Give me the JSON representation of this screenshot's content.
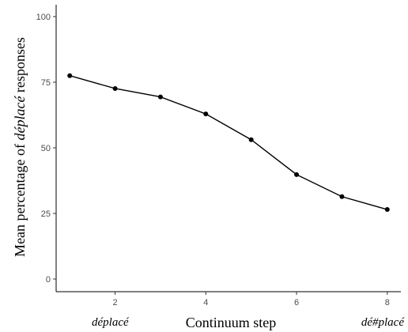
{
  "chart_data": {
    "type": "line",
    "xlabel": "Continuum step",
    "ylabel": {
      "prefix": "Mean percentage of ",
      "word": "déplacé",
      "suffix": " responses"
    },
    "x": [
      1,
      2,
      3,
      4,
      5,
      6,
      7,
      8
    ],
    "series": [
      {
        "values": [
          77.5,
          72.6,
          69.4,
          62.9,
          53.1,
          39.8,
          31.4,
          26.5
        ]
      }
    ],
    "xlim": [
      0.7,
      8.3
    ],
    "ylim": [
      0,
      100
    ],
    "xticks": [
      2,
      4,
      6,
      8
    ],
    "yticks": [
      0,
      25,
      50,
      75,
      100
    ],
    "endpoint_labels": {
      "left": "déplacé",
      "right": "dé#placé"
    },
    "grid": false,
    "line_color": "#000000",
    "point_color": "#000000"
  }
}
